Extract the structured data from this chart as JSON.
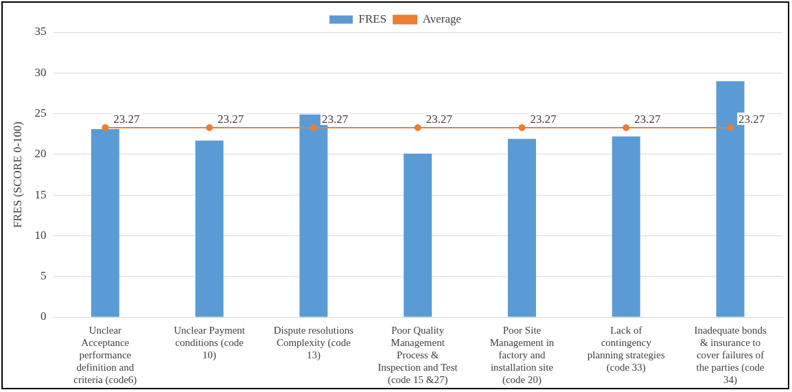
{
  "chart_data": {
    "type": "bar",
    "ylabel": "FRES (SCORE 0-100)",
    "categories": [
      "Unclear Acceptance performance definition and criteria (code6)",
      "Unclear Payment conditions (code 10)",
      "Dispute resolutions Complexity (code 13)",
      "Poor Quality Management Process & Inspection and Test (code 15 &27)",
      "Poor Site Management in factory and installation site (code 20)",
      "Lack of contingency planning strategies (code 33)",
      "Inadequate bonds & insurance to cover failures of the parties (code 34)"
    ],
    "series": [
      {
        "name": "FRES",
        "color": "#5b9bd5",
        "values": [
          23.1,
          21.7,
          24.9,
          20.1,
          21.9,
          22.2,
          29.0
        ]
      },
      {
        "name": "Average",
        "type": "line",
        "color": "#ed7d31",
        "marker": "circle",
        "values": [
          23.27,
          23.27,
          23.27,
          23.27,
          23.27,
          23.27,
          23.27
        ],
        "value_labels": [
          "23.27",
          "23.27",
          "23.27",
          "23.27",
          "23.27",
          "23.27",
          "23.27"
        ]
      }
    ],
    "ylim": [
      0,
      35
    ],
    "yticks": [
      0,
      5,
      10,
      15,
      20,
      25,
      30,
      35
    ],
    "grid": "y",
    "legend": "top"
  }
}
